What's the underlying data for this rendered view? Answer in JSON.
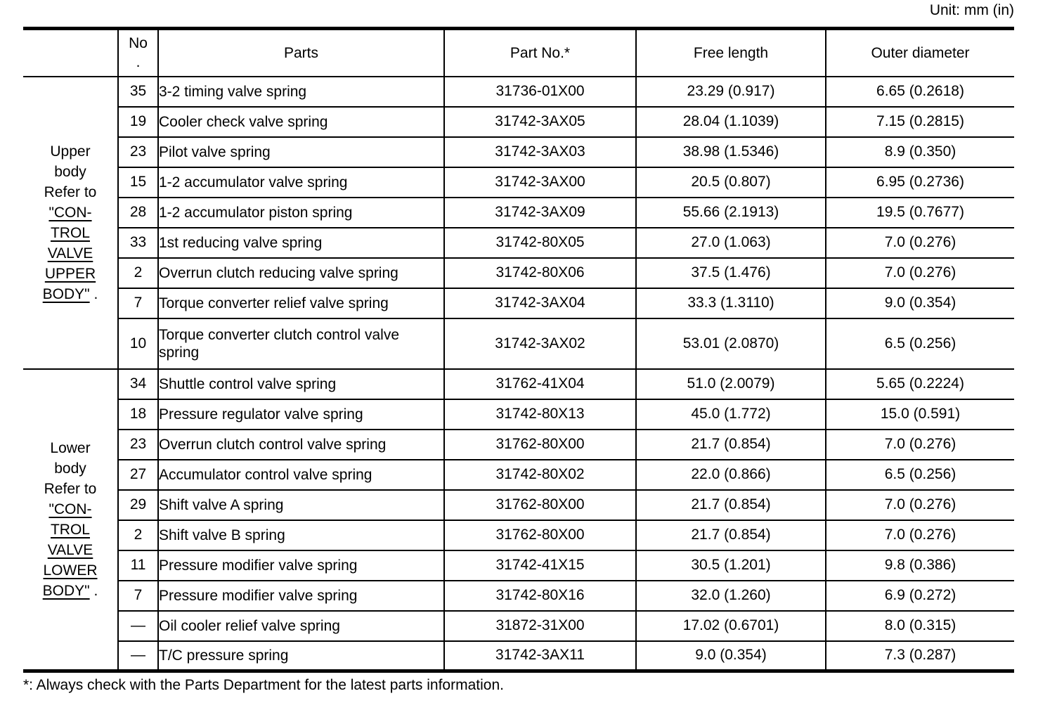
{
  "colors": {
    "text": "#000000",
    "background": "#ffffff"
  },
  "unit_label": "Unit: mm (in)",
  "footnote": "*: Always check with the Parts Department for the latest parts information.",
  "table": {
    "headers": {
      "group": "",
      "no": "No\n.",
      "parts": "Parts",
      "part_no": "Part No.*",
      "free_length": "Free length",
      "outer_diameter": "Outer diameter"
    },
    "groups": [
      {
        "label_intro": "Upper\nbody\nRefer to\n",
        "link_text": "\"CON-\nTROL\nVALVE\nUPPER\nBODY\"",
        "label_suffix": " .",
        "rows": [
          {
            "no": "35",
            "parts": "3-2 timing valve spring",
            "part_no": "31736-01X00",
            "free_length": "23.29 (0.917)",
            "outer_diameter": "6.65 (0.2618)"
          },
          {
            "no": "19",
            "parts": "Cooler check valve spring",
            "part_no": "31742-3AX05",
            "free_length": "28.04 (1.1039)",
            "outer_diameter": "7.15 (0.2815)"
          },
          {
            "no": "23",
            "parts": "Pilot valve spring",
            "part_no": "31742-3AX03",
            "free_length": "38.98 (1.5346)",
            "outer_diameter": "8.9 (0.350)"
          },
          {
            "no": "15",
            "parts": "1-2 accumulator valve spring",
            "part_no": "31742-3AX00",
            "free_length": "20.5 (0.807)",
            "outer_diameter": "6.95 (0.2736)"
          },
          {
            "no": "28",
            "parts": "1-2 accumulator piston spring",
            "part_no": "31742-3AX09",
            "free_length": "55.66 (2.1913)",
            "outer_diameter": "19.5 (0.7677)"
          },
          {
            "no": "33",
            "parts": "1st reducing valve spring",
            "part_no": "31742-80X05",
            "free_length": "27.0 (1.063)",
            "outer_diameter": "7.0 (0.276)"
          },
          {
            "no": "2",
            "parts": "Overrun clutch reducing valve spring",
            "part_no": "31742-80X06",
            "free_length": "37.5 (1.476)",
            "outer_diameter": "7.0 (0.276)"
          },
          {
            "no": "7",
            "parts": "Torque converter relief valve spring",
            "part_no": "31742-3AX04",
            "free_length": "33.3 (1.3110)",
            "outer_diameter": "9.0 (0.354)"
          },
          {
            "no": "10",
            "parts": "Torque converter clutch control valve spring",
            "part_no": "31742-3AX02",
            "free_length": "53.01 (2.0870)",
            "outer_diameter": "6.5 (0.256)"
          }
        ]
      },
      {
        "label_intro": "Lower\nbody\nRefer to\n",
        "link_text": "\"CON-\nTROL\nVALVE\nLOWER\nBODY\"",
        "label_suffix": " .",
        "rows": [
          {
            "no": "34",
            "parts": "Shuttle control valve spring",
            "part_no": "31762-41X04",
            "free_length": "51.0 (2.0079)",
            "outer_diameter": "5.65 (0.2224)"
          },
          {
            "no": "18",
            "parts": "Pressure regulator valve spring",
            "part_no": "31742-80X13",
            "free_length": "45.0 (1.772)",
            "outer_diameter": "15.0 (0.591)"
          },
          {
            "no": "23",
            "parts": "Overrun clutch control valve spring",
            "part_no": "31762-80X00",
            "free_length": "21.7 (0.854)",
            "outer_diameter": "7.0 (0.276)"
          },
          {
            "no": "27",
            "parts": "Accumulator control valve spring",
            "part_no": "31742-80X02",
            "free_length": "22.0 (0.866)",
            "outer_diameter": "6.5 (0.256)"
          },
          {
            "no": "29",
            "parts": "Shift valve A spring",
            "part_no": "31762-80X00",
            "free_length": "21.7 (0.854)",
            "outer_diameter": "7.0 (0.276)"
          },
          {
            "no": "2",
            "parts": "Shift valve B spring",
            "part_no": "31762-80X00",
            "free_length": "21.7 (0.854)",
            "outer_diameter": "7.0 (0.276)"
          },
          {
            "no": "11",
            "parts": "Pressure modifier valve spring",
            "part_no": "31742-41X15",
            "free_length": "30.5 (1.201)",
            "outer_diameter": "9.8 (0.386)"
          },
          {
            "no": "7",
            "parts": "Pressure modifier valve spring",
            "part_no": "31742-80X16",
            "free_length": "32.0 (1.260)",
            "outer_diameter": "6.9 (0.272)"
          },
          {
            "no": "—",
            "parts": "Oil cooler relief valve spring",
            "part_no": "31872-31X00",
            "free_length": "17.02 (0.6701)",
            "outer_diameter": "8.0 (0.315)"
          },
          {
            "no": "—",
            "parts": "T/C pressure spring",
            "part_no": "31742-3AX11",
            "free_length": "9.0 (0.354)",
            "outer_diameter": "7.3 (0.287)"
          }
        ]
      }
    ]
  }
}
